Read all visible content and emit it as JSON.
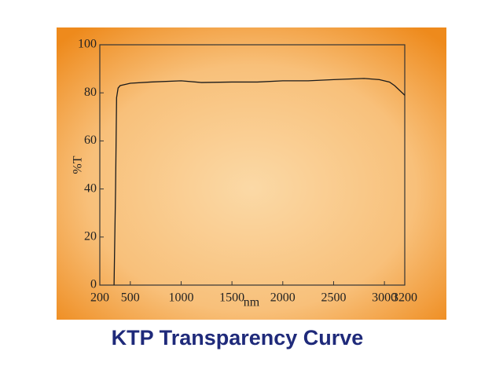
{
  "chart_data": {
    "type": "line",
    "title": "KTP Transparency Curve",
    "x_label": "nm",
    "y_label": "%T",
    "x": [
      340,
      355,
      365,
      380,
      400,
      450,
      500,
      700,
      1000,
      1200,
      1500,
      1750,
      2000,
      2250,
      2500,
      2800,
      2950,
      3050,
      3100,
      3150,
      3200
    ],
    "series": [
      {
        "name": "KTP",
        "color": "#1a1a1a",
        "values": [
          0,
          40,
          78,
          82,
          83,
          83.5,
          84,
          84.5,
          85,
          84.3,
          84.5,
          84.5,
          85,
          85,
          85.5,
          86,
          85.5,
          84.5,
          83,
          81,
          79
        ]
      }
    ],
    "xlim": [
      200,
      3200
    ],
    "xticks": [
      200,
      500,
      1000,
      1500,
      2000,
      2500,
      3000,
      3200
    ],
    "ylim": [
      0,
      100
    ],
    "yticks": [
      0,
      20,
      40,
      60,
      80,
      100
    ]
  }
}
